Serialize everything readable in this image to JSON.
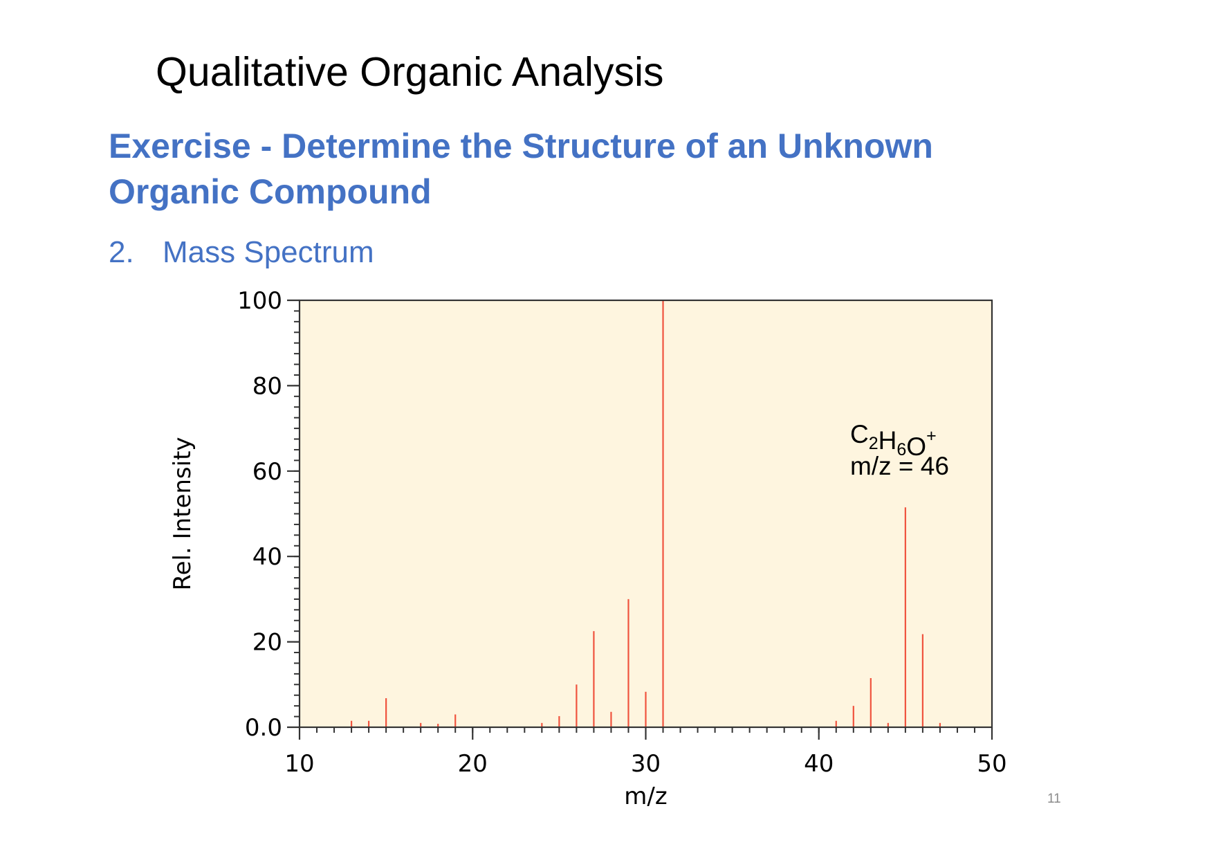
{
  "slide": {
    "title": "Qualitative Organic Analysis",
    "heading_line1": "Exercise - Determine the Structure of an Unknown",
    "heading_line2": "Organic Compound",
    "list_number": "2.",
    "list_text": "Mass Spectrum",
    "page_number": "11"
  },
  "colors": {
    "heading": "#4472C4",
    "plot_background": "#FEF5DF",
    "peak": "#F0533E",
    "axis": "#333333"
  },
  "chart_data": {
    "type": "bar",
    "title": "",
    "xlabel": "m/z",
    "ylabel": "Rel. Intensity",
    "xlim": [
      10,
      50
    ],
    "ylim": [
      0,
      100
    ],
    "x_ticks": [
      10,
      20,
      30,
      40,
      50
    ],
    "x_tick_labels": [
      "10",
      "20",
      "30",
      "40",
      "50"
    ],
    "y_ticks": [
      0,
      20,
      40,
      60,
      80,
      100
    ],
    "y_tick_labels": [
      "0.0",
      "20",
      "40",
      "60",
      "80",
      "100"
    ],
    "grid": false,
    "legend": null,
    "peaks": [
      {
        "mz": 13,
        "intensity": 1.5
      },
      {
        "mz": 14,
        "intensity": 1.5
      },
      {
        "mz": 15,
        "intensity": 6.8
      },
      {
        "mz": 17,
        "intensity": 1.0
      },
      {
        "mz": 18,
        "intensity": 0.8
      },
      {
        "mz": 19,
        "intensity": 3.0
      },
      {
        "mz": 24,
        "intensity": 1.0
      },
      {
        "mz": 25,
        "intensity": 2.6
      },
      {
        "mz": 26,
        "intensity": 10.0
      },
      {
        "mz": 27,
        "intensity": 22.5
      },
      {
        "mz": 28,
        "intensity": 3.6
      },
      {
        "mz": 29,
        "intensity": 30.0
      },
      {
        "mz": 30,
        "intensity": 8.3
      },
      {
        "mz": 31,
        "intensity": 100.0
      },
      {
        "mz": 41,
        "intensity": 1.5
      },
      {
        "mz": 42,
        "intensity": 5.0
      },
      {
        "mz": 43,
        "intensity": 11.5
      },
      {
        "mz": 44,
        "intensity": 1.0
      },
      {
        "mz": 45,
        "intensity": 51.5
      },
      {
        "mz": 46,
        "intensity": 21.8
      },
      {
        "mz": 47,
        "intensity": 1.0
      }
    ],
    "annotation": {
      "formula_parts": [
        {
          "text": "C",
          "type": "normal"
        },
        {
          "text": "2",
          "type": "sub"
        },
        {
          "text": "H",
          "type": "normal"
        },
        {
          "text": "6",
          "type": "sub"
        },
        {
          "text": "O",
          "type": "normal"
        },
        {
          "text": "+",
          "type": "sup"
        }
      ],
      "line2": "m/z = 46"
    }
  }
}
